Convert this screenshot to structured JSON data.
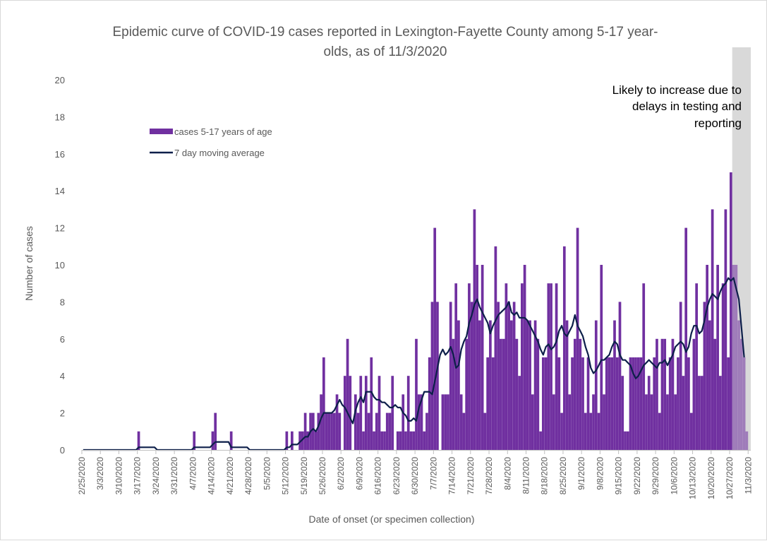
{
  "chart_data": {
    "type": "bar",
    "title_lines": [
      "Epidemic curve of COVID-19 cases reported in Lexington-Fayette County among 5-17 year-",
      "olds, as of 11/3/2020"
    ],
    "xlabel": "Date of onset (or specimen collection)",
    "ylabel": "Number of cases",
    "ylim": [
      0,
      20
    ],
    "yticks": [
      0,
      2,
      4,
      6,
      8,
      10,
      12,
      14,
      16,
      18,
      20
    ],
    "x_start": "2/25/2020",
    "x_end": "11/3/2020",
    "xtick_labels": [
      "2/25/2020",
      "3/3/2020",
      "3/10/2020",
      "3/17/2020",
      "3/24/2020",
      "3/31/2020",
      "4/7/2020",
      "4/14/2020",
      "4/21/2020",
      "4/28/2020",
      "5/5/2020",
      "5/12/2020",
      "5/19/2020",
      "5/26/2020",
      "6/2/2020",
      "6/9/2020",
      "6/16/2020",
      "6/23/2020",
      "6/30/2020",
      "7/7/2020",
      "7/14/2020",
      "7/21/2020",
      "7/28/2020",
      "8/4/2020",
      "8/11/2020",
      "8/18/2020",
      "8/25/2020",
      "9/1/2020",
      "9/8/2020",
      "9/15/2020",
      "9/22/2020",
      "9/29/2020",
      "10/6/2020",
      "10/13/2020",
      "10/20/2020",
      "10/27/2020",
      "11/3/2020"
    ],
    "series": [
      {
        "name": "cases 5-17 years of age",
        "kind": "bar",
        "color": "#7030a0",
        "values": [
          0,
          0,
          0,
          0,
          0,
          0,
          0,
          0,
          0,
          0,
          0,
          0,
          0,
          0,
          0,
          0,
          0,
          0,
          0,
          0,
          0,
          1,
          0,
          0,
          0,
          0,
          0,
          0,
          0,
          0,
          0,
          0,
          0,
          0,
          0,
          0,
          0,
          0,
          0,
          0,
          0,
          0,
          1,
          0,
          0,
          0,
          0,
          0,
          0,
          1,
          2,
          0,
          0,
          0,
          0,
          0,
          1,
          0,
          0,
          0,
          0,
          0,
          0,
          0,
          0,
          0,
          0,
          0,
          0,
          0,
          0,
          0,
          0,
          0,
          0,
          0,
          0,
          1,
          0,
          1,
          0,
          0,
          1,
          1,
          2,
          1,
          2,
          2,
          1,
          2,
          3,
          5,
          2,
          2,
          2,
          2,
          3,
          2,
          0,
          4,
          6,
          4,
          0,
          3,
          2,
          4,
          1,
          4,
          2,
          5,
          1,
          2,
          4,
          1,
          1,
          2,
          2,
          4,
          0,
          1,
          1,
          3,
          1,
          4,
          1,
          1,
          6,
          3,
          3,
          1,
          2,
          5,
          8,
          12,
          8,
          0,
          3,
          3,
          3,
          8,
          6,
          9,
          7,
          3,
          2,
          6,
          9,
          8,
          13,
          10,
          7,
          10,
          2,
          5,
          7,
          5,
          11,
          8,
          6,
          6,
          9,
          8,
          7,
          8,
          6,
          4,
          9,
          10,
          7,
          7,
          3,
          7,
          6,
          1,
          5,
          5,
          9,
          9,
          3,
          9,
          5,
          2,
          11,
          7,
          3,
          5,
          6,
          12,
          6,
          5,
          2,
          5,
          2,
          3,
          7,
          2,
          10,
          3,
          5,
          5,
          5,
          7,
          5,
          8,
          4,
          1,
          1,
          5,
          5,
          5,
          5,
          5,
          9,
          3,
          4,
          3,
          5,
          6,
          2,
          6,
          6,
          3,
          5,
          6,
          3,
          5,
          8,
          4,
          12,
          5,
          2,
          6,
          9,
          4,
          4,
          8,
          10,
          7,
          13,
          6,
          10,
          4,
          9,
          13,
          5,
          15,
          10,
          10,
          7,
          6,
          5,
          1,
          0
        ],
        "partial_from": "10/28/2020"
      },
      {
        "name": "7 day moving average",
        "kind": "line",
        "color": "#0d1f4a",
        "values": [
          0,
          0,
          0,
          0,
          0,
          0,
          0,
          0,
          0,
          0,
          0,
          0,
          0,
          0,
          0,
          0,
          0,
          0,
          0,
          0,
          0,
          0.14,
          0.14,
          0.14,
          0.14,
          0.14,
          0.14,
          0.14,
          0,
          0,
          0,
          0,
          0,
          0,
          0,
          0,
          0,
          0,
          0,
          0,
          0,
          0,
          0.14,
          0.14,
          0.14,
          0.14,
          0.14,
          0.14,
          0.14,
          0.29,
          0.43,
          0.43,
          0.43,
          0.43,
          0.43,
          0.43,
          0.14,
          0.14,
          0.14,
          0.14,
          0.14,
          0.14,
          0.14,
          0,
          0,
          0,
          0,
          0,
          0,
          0,
          0,
          0,
          0,
          0,
          0,
          0,
          0,
          0.14,
          0.14,
          0.29,
          0.29,
          0.29,
          0.43,
          0.57,
          0.71,
          0.71,
          1,
          1.14,
          1,
          1.29,
          1.71,
          2,
          2,
          2,
          2,
          2.14,
          2.43,
          2.71,
          2.43,
          2.29,
          2,
          1.71,
          1.43,
          2.14,
          2.57,
          2.86,
          2.57,
          3.14,
          3.14,
          3.14,
          2.86,
          2.71,
          2.71,
          2.57,
          2.57,
          2.43,
          2.29,
          2.29,
          2.43,
          2.29,
          2.29,
          2,
          1.86,
          1.57,
          1.57,
          1.71,
          1.57,
          2.29,
          2.71,
          3.14,
          3.14,
          3.14,
          3,
          3.71,
          4.43,
          5.14,
          5.43,
          5.14,
          5.29,
          5.57,
          5.14,
          4.43,
          4.57,
          5.43,
          5.86,
          6.14,
          6.86,
          7.29,
          7.86,
          8.14,
          7.71,
          7.43,
          7.14,
          6.86,
          6.29,
          6.71,
          7,
          7.29,
          7.43,
          7.57,
          7.71,
          8,
          7.43,
          7.29,
          7.43,
          7.14,
          7.14,
          7.14,
          7,
          6.71,
          6.43,
          6.14,
          5.86,
          5.43,
          5.14,
          5.57,
          5.71,
          5.43,
          5.57,
          5.86,
          6.43,
          6.71,
          6.29,
          6.14,
          6.43,
          6.71,
          7.29,
          6.71,
          6.43,
          6.14,
          5.57,
          5.14,
          4.43,
          4.14,
          4.29,
          4.57,
          4.86,
          4.86,
          5,
          5.14,
          5.57,
          5.86,
          5.71,
          5.14,
          4.86,
          4.86,
          4.71,
          4.57,
          4.14,
          3.86,
          4,
          4.29,
          4.57,
          4.71,
          4.86,
          4.71,
          4.57,
          4.43,
          4.71,
          4.71,
          4.86,
          4.57,
          4.86,
          5.14,
          5.57,
          5.71,
          5.86,
          5.71,
          5.29,
          5.57,
          6.29,
          6.71,
          6.71,
          6.29,
          6.43,
          7,
          7.71,
          8.14,
          8.43,
          8.29,
          8.14,
          8.57,
          8.86,
          9,
          9.29,
          9.14,
          9.29,
          8.71,
          8.14,
          6.57,
          5
        ]
      }
    ],
    "shaded_region": {
      "from": "10/28/2020",
      "to": "11/3/2020",
      "color": "#d9d9d9",
      "annotation_lines": [
        "Likely to increase due to",
        "delays in testing and",
        "reporting"
      ]
    },
    "legend_placement": "upper-left, inside plot",
    "grid": false
  }
}
